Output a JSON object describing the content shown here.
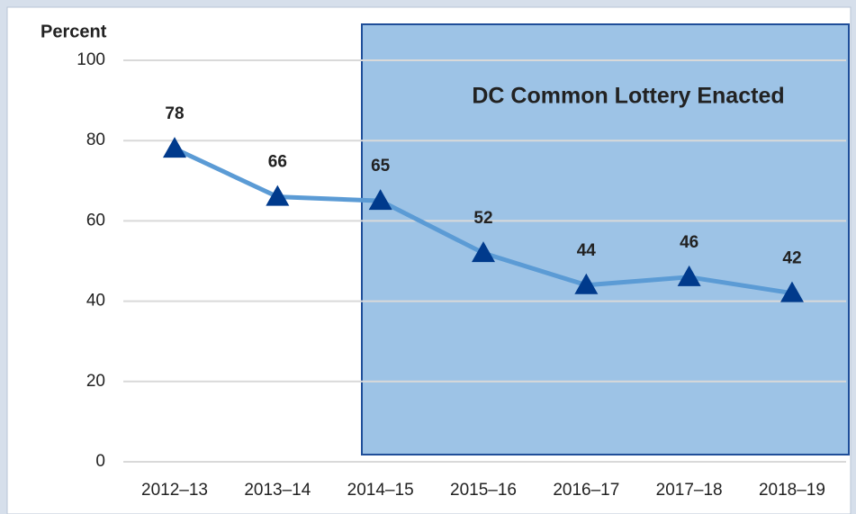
{
  "chart_data": {
    "type": "line",
    "y_axis_label": "Percent",
    "annotation": "DC Common Lottery Enacted",
    "categories": [
      "2012–13",
      "2013–14",
      "2014–15",
      "2015–16",
      "2016–17",
      "2017–18",
      "2018–19"
    ],
    "series": [
      {
        "name": "Percent",
        "color": "#5b9bd5",
        "marker_color": "#003a8c",
        "values": [
          78,
          66,
          65,
          52,
          44,
          46,
          42
        ]
      }
    ],
    "ylim": [
      0,
      100
    ],
    "yticks": [
      0,
      20,
      40,
      60,
      80,
      100
    ],
    "grid": true
  }
}
